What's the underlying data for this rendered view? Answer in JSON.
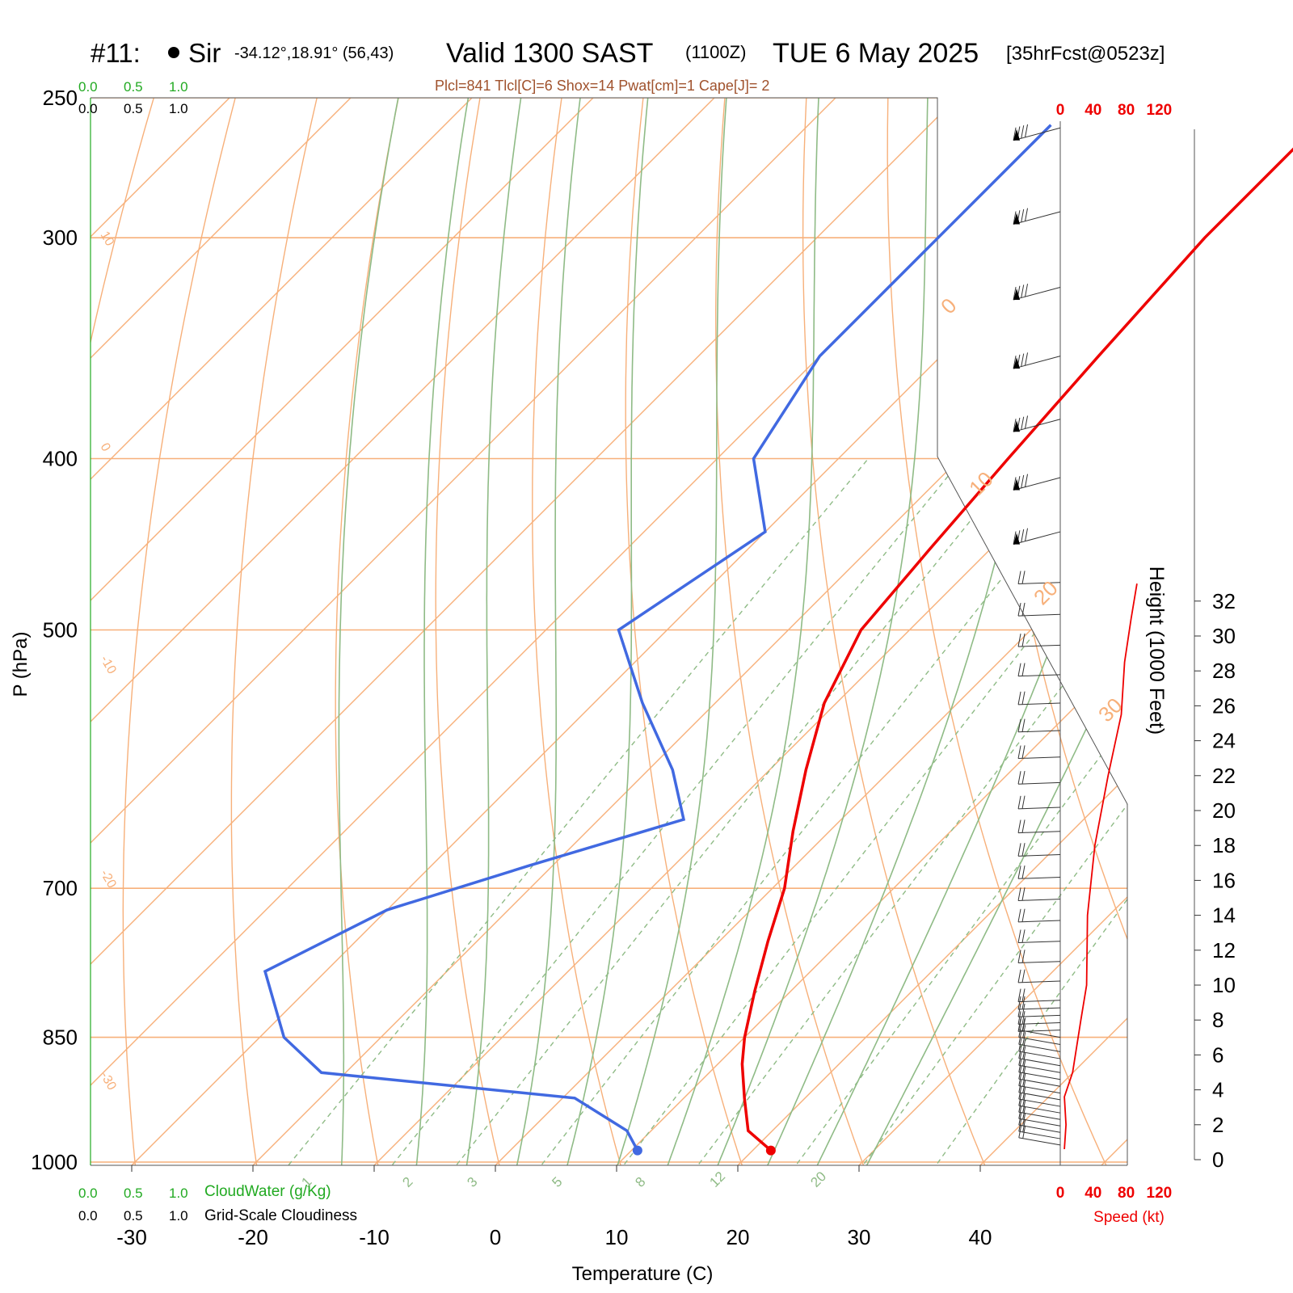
{
  "header": {
    "station_id": "#11:",
    "station_name": "Sir",
    "coords": "-34.12°,18.91° (56,43)",
    "valid_main": "Valid 1300 SAST",
    "valid_z": "(1100Z)",
    "valid_date": "TUE 6 May 2025",
    "forecast": "[35hrFcst@0523z]",
    "indices": "Plcl=841 Tlcl[C]=6 Shox=14 Pwat[cm]=1 Cape[J]= 2"
  },
  "legend": {
    "cloudwater_scale": [
      "0.0",
      "0.5",
      "1.0"
    ],
    "cloudiness_scale": [
      "0.0",
      "0.5",
      "1.0"
    ],
    "cloudwater_label": "CloudWater (g/Kg)",
    "cloudiness_label": "Grid-Scale Cloudiness"
  },
  "colors": {
    "temperature": "#ee0000",
    "dewpoint": "#4169e1",
    "isotherm_isobar": "#f7b07a",
    "dry_adiabat": "#f7b07a",
    "moist_adiabat": "#8fbb86",
    "mixing_ratio": "#8fbb86",
    "cloud_scale": "#22aa22",
    "speed": "#ee0000"
  },
  "chart_data": {
    "type": "line",
    "title": "Valid 1300 SAST (1100Z) TUE 6 May 2025",
    "xlabel": "Temperature (C)",
    "ylabel": "P (hPa)",
    "x_ticks": [
      "-30",
      "-20",
      "-10",
      "0",
      "10",
      "20",
      "30",
      "40"
    ],
    "y_ticks": [
      "250",
      "300",
      "400",
      "500",
      "700",
      "850",
      "1000"
    ],
    "height_label": "Height (1000 Feet)",
    "height_ticks": [
      "0",
      "2",
      "4",
      "6",
      "8",
      "10",
      "12",
      "14",
      "16",
      "18",
      "20",
      "22",
      "24",
      "26",
      "28",
      "30",
      "32"
    ],
    "speed_label": "Speed (kt)",
    "speed_ticks": [
      "0",
      "40",
      "80",
      "120"
    ],
    "isotherm_labels": [
      "10",
      "0",
      "-10",
      "-20",
      "-30",
      "0",
      "10",
      "20",
      "30"
    ],
    "mixing_ratio_labels": [
      "1",
      "2",
      "3",
      "5",
      "8",
      "12",
      "20"
    ],
    "series": [
      {
        "name": "Temperature",
        "points": [
          {
            "p": 259,
            "t": -18
          },
          {
            "p": 300,
            "t": -18
          },
          {
            "p": 350,
            "t": -17
          },
          {
            "p": 400,
            "t": -16
          },
          {
            "p": 450,
            "t": -15
          },
          {
            "p": 500,
            "t": -14
          },
          {
            "p": 550,
            "t": -11
          },
          {
            "p": 600,
            "t": -7
          },
          {
            "p": 650,
            "t": -3
          },
          {
            "p": 700,
            "t": 1
          },
          {
            "p": 750,
            "t": 4
          },
          {
            "p": 800,
            "t": 7
          },
          {
            "p": 850,
            "t": 10
          },
          {
            "p": 880,
            "t": 12
          },
          {
            "p": 920,
            "t": 15
          },
          {
            "p": 960,
            "t": 18
          },
          {
            "p": 985,
            "t": 21.5
          }
        ]
      },
      {
        "name": "Dewpoint",
        "points": [
          {
            "p": 259,
            "t": -40
          },
          {
            "p": 300,
            "t": -40
          },
          {
            "p": 350,
            "t": -40
          },
          {
            "p": 400,
            "t": -37
          },
          {
            "p": 440,
            "t": -30
          },
          {
            "p": 500,
            "t": -34
          },
          {
            "p": 550,
            "t": -26
          },
          {
            "p": 600,
            "t": -18
          },
          {
            "p": 640,
            "t": -13
          },
          {
            "p": 680,
            "t": -22
          },
          {
            "p": 720,
            "t": -30
          },
          {
            "p": 780,
            "t": -35
          },
          {
            "p": 850,
            "t": -28
          },
          {
            "p": 890,
            "t": -22
          },
          {
            "p": 920,
            "t": 1
          },
          {
            "p": 960,
            "t": 8
          },
          {
            "p": 985,
            "t": 10.5
          }
        ]
      }
    ],
    "wind_speed_profile": [
      {
        "h": 0.6,
        "kt": 5
      },
      {
        "h": 2,
        "kt": 7
      },
      {
        "h": 3.6,
        "kt": 5
      },
      {
        "h": 5,
        "kt": 15
      },
      {
        "h": 8,
        "kt": 25
      },
      {
        "h": 10,
        "kt": 32
      },
      {
        "h": 14,
        "kt": 33
      },
      {
        "h": 18,
        "kt": 42
      },
      {
        "h": 22,
        "kt": 58
      },
      {
        "h": 25.5,
        "kt": 74
      },
      {
        "h": 28.5,
        "kt": 78
      },
      {
        "h": 31,
        "kt": 86
      },
      {
        "h": 33,
        "kt": 93
      }
    ]
  }
}
